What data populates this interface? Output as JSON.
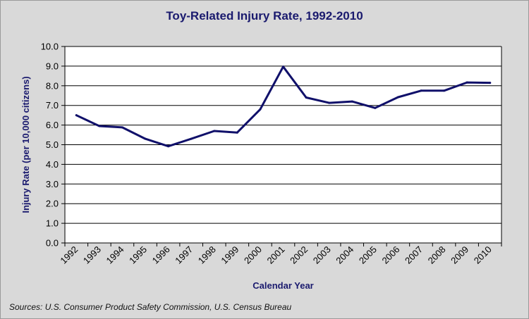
{
  "chart_data": {
    "type": "line",
    "title": "Toy-Related Injury Rate, 1992-2010",
    "xlabel": "Calendar Year",
    "ylabel": "Injury Rate (per 10,000 citizens)",
    "source": "Sources: U.S. Consumer Product Safety Commission, U.S. Census Bureau",
    "categories": [
      "1992",
      "1993",
      "1994",
      "1995",
      "1996",
      "1997",
      "1998",
      "1999",
      "2000",
      "2001",
      "2002",
      "2003",
      "2004",
      "2005",
      "2006",
      "2007",
      "2008",
      "2009",
      "2010"
    ],
    "values": [
      6.5,
      5.95,
      5.88,
      5.3,
      4.92,
      5.3,
      5.7,
      5.62,
      6.8,
      8.97,
      7.4,
      7.13,
      7.2,
      6.87,
      7.42,
      7.75,
      7.75,
      8.17,
      8.15
    ],
    "ylim": [
      0,
      10
    ],
    "yticks": [
      "0.0",
      "1.0",
      "2.0",
      "3.0",
      "4.0",
      "5.0",
      "6.0",
      "7.0",
      "8.0",
      "9.0",
      "10.0"
    ],
    "grid": true,
    "legend": "none",
    "colors": {
      "line": "#10106a",
      "plot_bg": "#ffffff",
      "grid": "#000000",
      "chart_bg": "#d9d9d9"
    }
  }
}
